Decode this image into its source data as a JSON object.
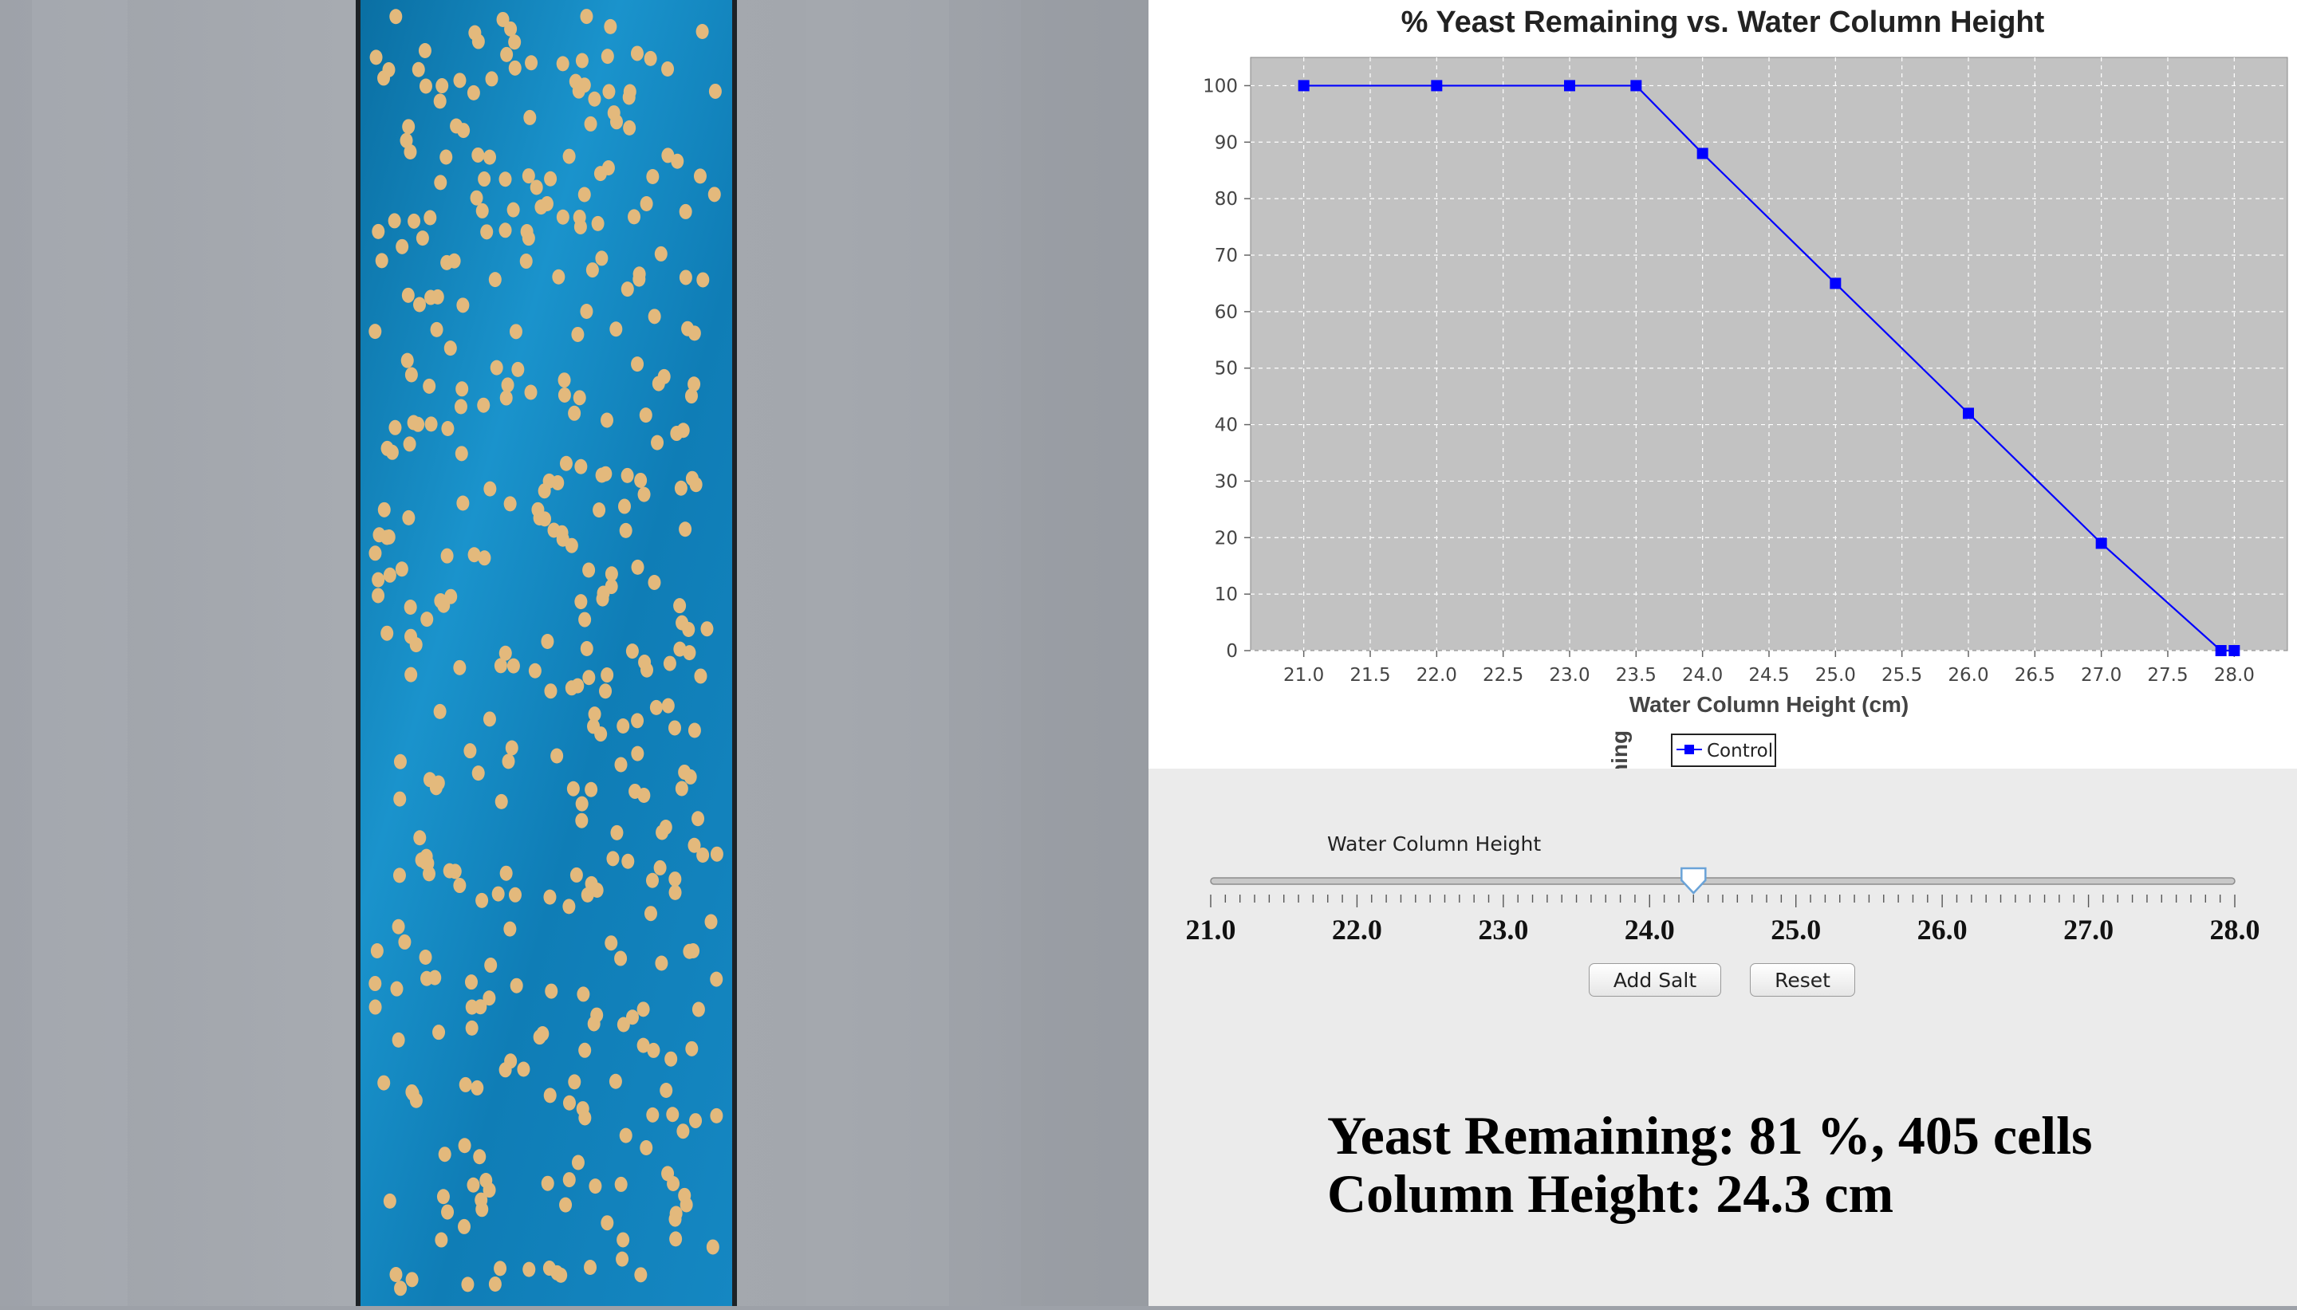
{
  "chart_data": {
    "type": "line",
    "title": "% Yeast Remaining vs. Water Column Height",
    "xlabel": "Water Column Height (cm)",
    "ylabel": "% Yeast Remaining",
    "xlim": [
      20.6,
      28.4
    ],
    "ylim": [
      0,
      105
    ],
    "x_ticks": [
      "21.0",
      "21.5",
      "22.0",
      "22.5",
      "23.0",
      "23.5",
      "24.0",
      "24.5",
      "25.0",
      "25.5",
      "26.0",
      "26.5",
      "27.0",
      "27.5",
      "28.0"
    ],
    "y_ticks": [
      "0",
      "10",
      "20",
      "30",
      "40",
      "50",
      "60",
      "70",
      "80",
      "90",
      "100"
    ],
    "grid": true,
    "legend_position": "bottom-center",
    "series": [
      {
        "name": "Control",
        "color": "#0000ff",
        "x": [
          21.0,
          22.0,
          23.0,
          23.5,
          24.0,
          25.0,
          26.0,
          27.0,
          27.9,
          28.0
        ],
        "y": [
          100,
          100,
          100,
          100,
          88,
          65,
          42,
          19,
          0,
          0
        ]
      }
    ]
  },
  "slider": {
    "label": "Water Column Height",
    "min": 21.0,
    "max": 28.0,
    "value": 24.3,
    "tick_labels": [
      "21.0",
      "22.0",
      "23.0",
      "24.0",
      "25.0",
      "26.0",
      "27.0",
      "28.0"
    ]
  },
  "buttons": {
    "add_salt": "Add Salt",
    "reset": "Reset"
  },
  "status": {
    "line1": "Yeast Remaining: 81 %, 405 cells",
    "line2": "Column Height: 24.3 cm"
  },
  "colors": {
    "water": "#1a8fc8",
    "yeast": "#e0b77a",
    "plot_background": "#c2c2c2",
    "series": "#0000ff"
  }
}
